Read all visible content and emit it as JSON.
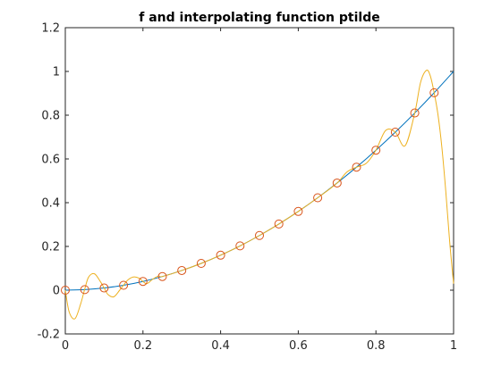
{
  "chart_data": {
    "type": "line",
    "title": "f and interpolating function ptilde",
    "xlabel": "",
    "ylabel": "",
    "xlim": [
      0,
      1
    ],
    "ylim": [
      -0.2,
      1.2
    ],
    "x_ticks": [
      0,
      0.2,
      0.4,
      0.6,
      0.8,
      1
    ],
    "x_tick_labels": [
      "0",
      "0.2",
      "0.4",
      "0.6",
      "0.8",
      "1"
    ],
    "y_ticks": [
      -0.2,
      0,
      0.2,
      0.4,
      0.6,
      0.8,
      1,
      1.2
    ],
    "y_tick_labels": [
      "-0.2",
      "0",
      "0.2",
      "0.4",
      "0.6",
      "0.8",
      "1",
      "1.2"
    ],
    "grid": false,
    "legend": "none",
    "series": [
      {
        "kind": "line",
        "color": "#0072BD",
        "x": [
          0,
          0.05,
          0.1,
          0.15,
          0.2,
          0.25,
          0.3,
          0.35,
          0.4,
          0.45,
          0.5,
          0.55,
          0.6,
          0.65,
          0.7,
          0.75,
          0.8,
          0.85,
          0.9,
          0.95,
          1
        ],
        "y": [
          0,
          0.0025,
          0.01,
          0.0225,
          0.04,
          0.0625,
          0.09,
          0.1225,
          0.16,
          0.2025,
          0.25,
          0.3025,
          0.36,
          0.4225,
          0.49,
          0.5625,
          0.64,
          0.7225,
          0.81,
          0.9025,
          1
        ]
      },
      {
        "kind": "line",
        "color": "#EDB120",
        "x": [
          0,
          0.01,
          0.025,
          0.04,
          0.05,
          0.06,
          0.075,
          0.09,
          0.1,
          0.11,
          0.125,
          0.14,
          0.15,
          0.16,
          0.175,
          0.19,
          0.2,
          0.21,
          0.225,
          0.24,
          0.25,
          0.3,
          0.35,
          0.4,
          0.45,
          0.5,
          0.55,
          0.6,
          0.65,
          0.7,
          0.725,
          0.75,
          0.775,
          0.8,
          0.825,
          0.85,
          0.875,
          0.9,
          0.915,
          0.93,
          0.94,
          0.95,
          0.96,
          0.97,
          0.98,
          0.99,
          1
        ],
        "y": [
          0,
          -0.1,
          -0.13,
          -0.06,
          0.005,
          0.06,
          0.075,
          0.04,
          0.01,
          -0.02,
          -0.03,
          0.0,
          0.0225,
          0.045,
          0.06,
          0.055,
          0.04,
          0.03,
          0.05,
          0.065,
          0.0625,
          0.09,
          0.1225,
          0.16,
          0.2025,
          0.25,
          0.3025,
          0.36,
          0.4225,
          0.49,
          0.54,
          0.5625,
          0.58,
          0.64,
          0.73,
          0.7225,
          0.66,
          0.81,
          0.95,
          1.005,
          0.98,
          0.9025,
          0.8,
          0.65,
          0.45,
          0.22,
          0.03
        ]
      },
      {
        "kind": "markers",
        "color": "#D95319",
        "x": [
          0,
          0.05,
          0.1,
          0.15,
          0.2,
          0.25,
          0.3,
          0.35,
          0.4,
          0.45,
          0.5,
          0.55,
          0.6,
          0.65,
          0.7,
          0.75,
          0.8,
          0.85,
          0.9,
          0.95
        ],
        "y": [
          0,
          0.0025,
          0.01,
          0.0225,
          0.04,
          0.0625,
          0.09,
          0.1225,
          0.16,
          0.2025,
          0.25,
          0.3025,
          0.36,
          0.4225,
          0.49,
          0.5625,
          0.64,
          0.7225,
          0.81,
          0.9025
        ]
      }
    ]
  }
}
